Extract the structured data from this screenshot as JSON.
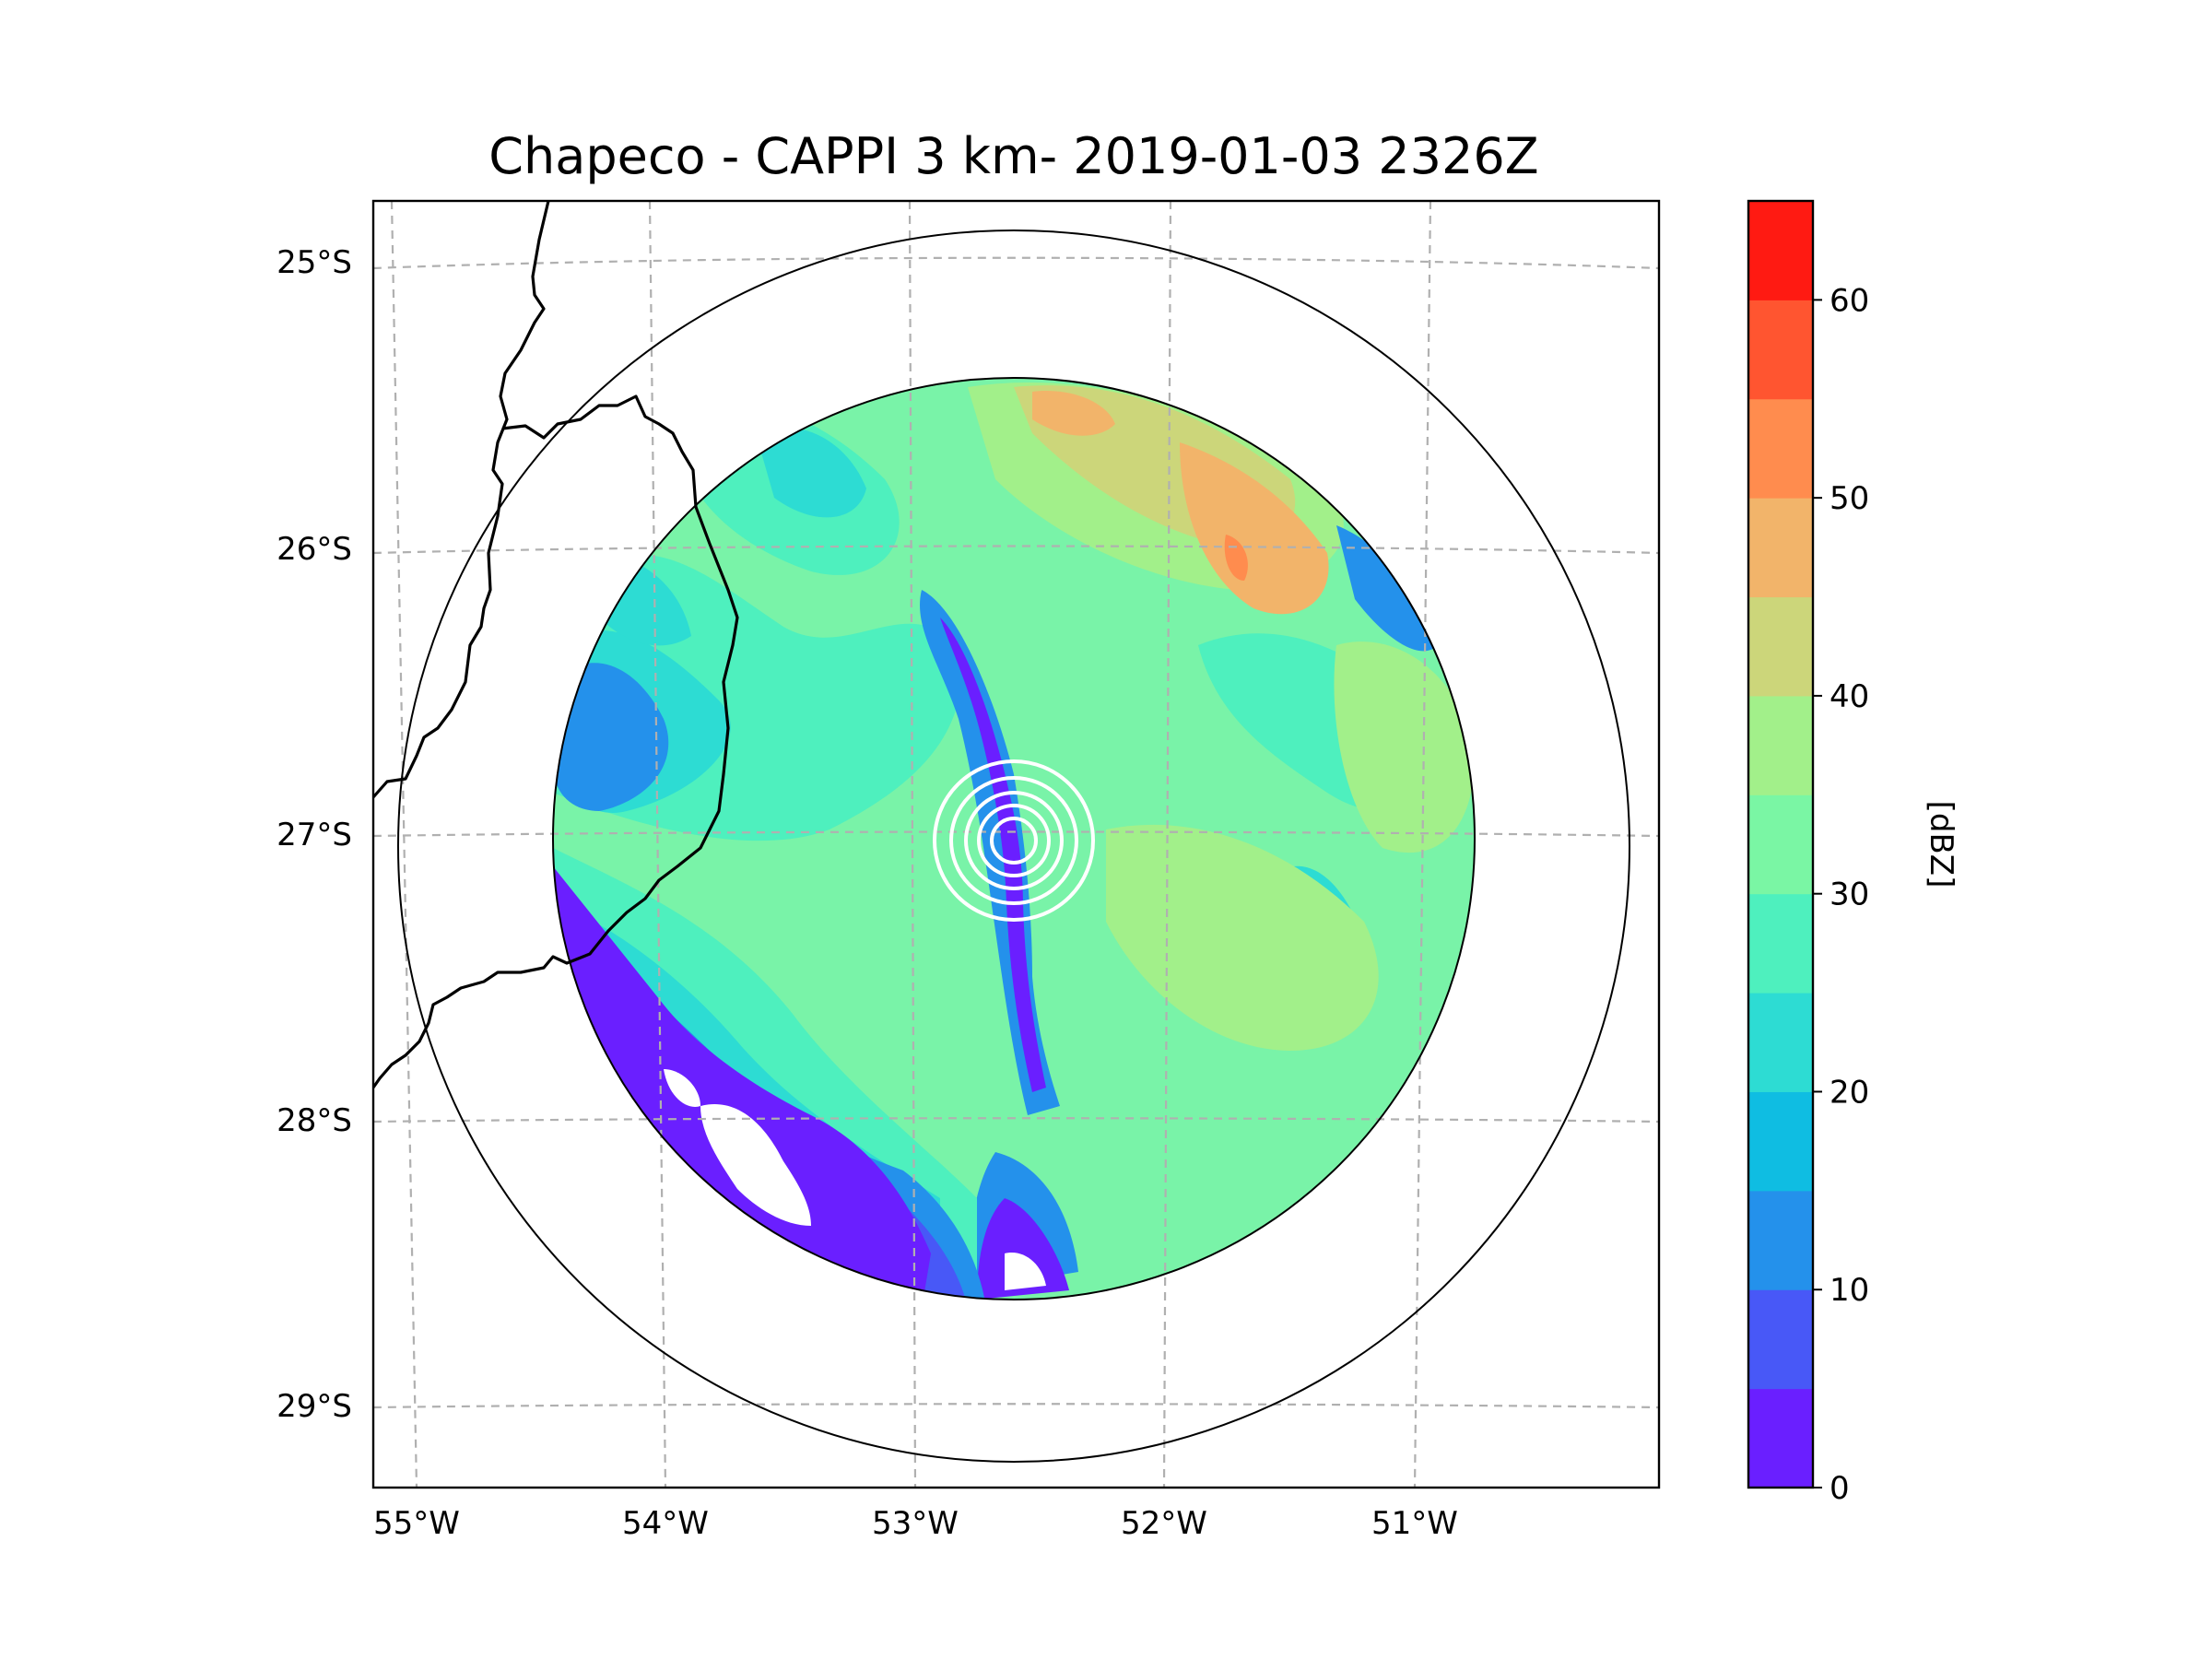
{
  "chart_data": {
    "type": "map",
    "title": "Chapeco - CAPPI 3 km- 2019-01-03 2326Z",
    "product": "CAPPI 3 km",
    "radar_site": "Chapeco",
    "radar_center": {
      "lon": -52.6,
      "lat": -27.02
    },
    "radar_range_rings": "outer circles",
    "lon_ticks": [
      {
        "value": -55,
        "label": "55°W"
      },
      {
        "value": -54,
        "label": "54°W"
      },
      {
        "value": -53,
        "label": "53°W"
      },
      {
        "value": -52,
        "label": "52°W"
      },
      {
        "value": -51,
        "label": "51°W"
      }
    ],
    "lat_ticks": [
      {
        "value": -25,
        "label": "25°S"
      },
      {
        "value": -26,
        "label": "26°S"
      },
      {
        "value": -27,
        "label": "27°S"
      },
      {
        "value": -28,
        "label": "28°S"
      },
      {
        "value": -29,
        "label": "29°S"
      }
    ],
    "xlim": [
      -55.2,
      -50.05
    ],
    "ylim": [
      -29.3,
      -24.75
    ],
    "colorbar": {
      "label": "[dBZ]",
      "range": [
        0,
        65
      ],
      "ticks": [
        {
          "value": 0,
          "label": "0"
        },
        {
          "value": 10,
          "label": "10"
        },
        {
          "value": 20,
          "label": "20"
        },
        {
          "value": 30,
          "label": "30"
        },
        {
          "value": 40,
          "label": "40"
        },
        {
          "value": 50,
          "label": "50"
        },
        {
          "value": 60,
          "label": "60"
        }
      ],
      "bins": [
        0,
        5,
        10,
        15,
        20,
        25,
        30,
        35,
        40,
        45,
        50,
        55,
        60,
        65
      ],
      "colors": [
        "#6a1fff",
        "#4858f7",
        "#2491eb",
        "#0fbde2",
        "#2ddcd3",
        "#4ef0be",
        "#7af6a4",
        "#a2f08a",
        "#ccd67a",
        "#f2b46a",
        "#ff8c4e",
        "#ff5530",
        "#ff1a12"
      ]
    }
  }
}
